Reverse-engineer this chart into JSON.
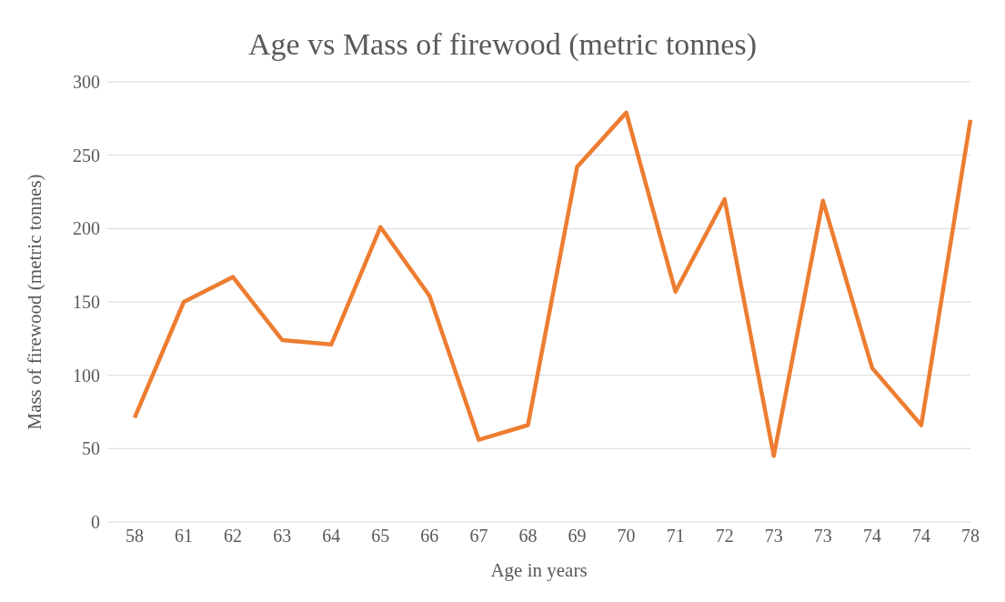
{
  "chart_data": {
    "type": "line",
    "title": "Age vs Mass of firewood (metric tonnes)",
    "xlabel": "Age in years",
    "ylabel": "Mass of firewood (metric tonnes)",
    "categories": [
      "58",
      "61",
      "62",
      "63",
      "64",
      "65",
      "66",
      "67",
      "68",
      "69",
      "70",
      "71",
      "72",
      "73",
      "73",
      "74",
      "74",
      "78"
    ],
    "series": [
      {
        "color": "#ed7d31",
        "values": [
          71,
          150,
          167,
          124,
          121,
          201,
          154,
          56,
          66,
          242,
          279,
          157,
          220,
          45,
          219,
          105,
          66,
          274
        ]
      }
    ],
    "ylim": [
      0,
      300
    ],
    "yticks": [
      0,
      50,
      100,
      150,
      200,
      250,
      300
    ],
    "grid": "y",
    "legend": false,
    "marker": "none",
    "line_style": "solid"
  }
}
